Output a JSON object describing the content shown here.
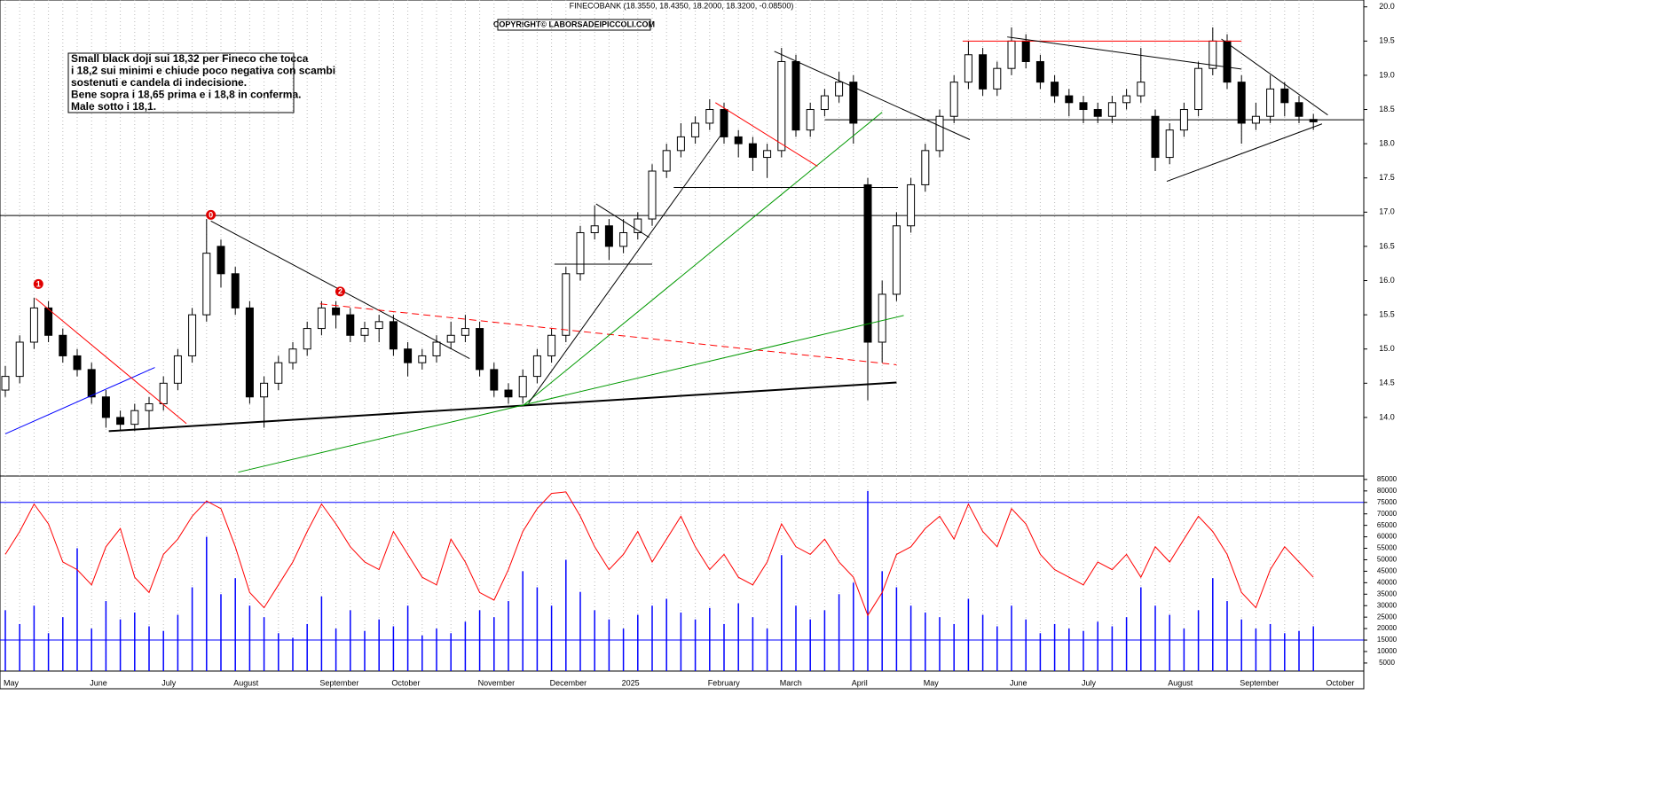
{
  "chart_data": [
    {
      "type": "candlestick",
      "header": "FINECOBANK (18.3550, 18.4350, 18.2000, 18.3200, -0.08500)",
      "copyright": "COPYRIGHT© LABORSADEIPICCOLI.COM",
      "annotation_box": {
        "lines": [
          "Small black doji sui 18,32 per Fineco che tocca",
          "i 18,2 sui minimi e chiude poco negativa con scambi",
          "sostenuti e candela di indecisione.",
          "Bene sopra i 18,65 prima e i 18,8 in conferma.",
          "Male sotto i 18,1."
        ]
      },
      "open": [
        14.4,
        14.6,
        15.1,
        15.6,
        15.2,
        14.9,
        14.7,
        14.3,
        14.0,
        13.9,
        14.1,
        14.2,
        14.5,
        14.9,
        15.5,
        16.5,
        16.1,
        15.6,
        14.3,
        14.5,
        14.8,
        15.0,
        15.3,
        15.6,
        15.5,
        15.2,
        15.3,
        15.4,
        15.0,
        14.8,
        14.9,
        15.1,
        15.2,
        15.3,
        14.7,
        14.4,
        14.3,
        14.6,
        14.9,
        15.2,
        16.1,
        16.7,
        16.8,
        16.5,
        16.7,
        16.9,
        17.6,
        17.9,
        18.1,
        18.3,
        18.5,
        18.1,
        18.0,
        17.8,
        17.9,
        19.2,
        18.2,
        18.5,
        18.7,
        18.9,
        17.4,
        15.1,
        15.8,
        16.8,
        17.4,
        17.9,
        18.4,
        18.9,
        19.3,
        18.8,
        19.1,
        19.5,
        19.2,
        18.9,
        18.7,
        18.6,
        18.5,
        18.4,
        18.6,
        18.7,
        18.4,
        17.8,
        18.2,
        18.5,
        19.1,
        19.5,
        18.9,
        18.3,
        18.4,
        18.8,
        18.6,
        18.355
      ],
      "high": [
        14.75,
        15.2,
        15.75,
        15.7,
        15.3,
        15.0,
        14.8,
        14.4,
        14.1,
        14.2,
        14.3,
        14.6,
        15.0,
        15.6,
        16.9,
        16.6,
        16.2,
        15.7,
        14.6,
        14.9,
        15.1,
        15.4,
        15.7,
        15.7,
        15.6,
        15.4,
        15.5,
        15.5,
        15.1,
        15.0,
        15.2,
        15.4,
        15.5,
        15.4,
        14.8,
        14.5,
        14.7,
        15.0,
        15.3,
        16.2,
        16.8,
        17.1,
        16.9,
        16.9,
        17.0,
        17.7,
        18.0,
        18.3,
        18.4,
        18.65,
        18.6,
        18.2,
        18.1,
        18.0,
        19.4,
        19.3,
        18.6,
        18.8,
        19.05,
        19.0,
        17.5,
        16.0,
        17.0,
        17.5,
        18.0,
        18.5,
        19.0,
        19.5,
        19.4,
        19.2,
        19.7,
        19.6,
        19.3,
        19.0,
        18.8,
        18.7,
        18.6,
        18.7,
        18.8,
        19.4,
        18.5,
        18.3,
        18.6,
        19.2,
        19.7,
        19.6,
        19.0,
        18.6,
        19.0,
        18.9,
        18.7,
        18.435
      ],
      "low": [
        14.3,
        14.5,
        15.0,
        15.1,
        14.8,
        14.6,
        14.2,
        13.85,
        13.8,
        13.8,
        13.85,
        14.1,
        14.4,
        14.8,
        15.4,
        15.9,
        15.5,
        14.2,
        13.85,
        14.4,
        14.7,
        14.9,
        15.2,
        15.3,
        15.1,
        15.1,
        15.1,
        14.9,
        14.6,
        14.7,
        14.8,
        15.0,
        15.1,
        14.6,
        14.3,
        14.2,
        14.2,
        14.5,
        14.8,
        15.1,
        16.0,
        16.6,
        16.3,
        16.4,
        16.6,
        16.8,
        17.5,
        17.8,
        18.0,
        18.2,
        18.0,
        17.8,
        17.6,
        17.5,
        17.8,
        18.1,
        18.1,
        18.4,
        18.6,
        18.0,
        14.25,
        14.8,
        15.7,
        16.7,
        17.3,
        17.8,
        18.3,
        18.8,
        18.7,
        18.7,
        19.0,
        19.1,
        18.8,
        18.6,
        18.4,
        18.3,
        18.3,
        18.3,
        18.5,
        18.6,
        17.6,
        17.7,
        18.1,
        18.4,
        19.0,
        18.8,
        18.0,
        18.2,
        18.3,
        18.4,
        18.3,
        18.2
      ],
      "close": [
        14.6,
        15.1,
        15.6,
        15.2,
        14.9,
        14.7,
        14.3,
        14.0,
        13.9,
        14.1,
        14.2,
        14.5,
        14.9,
        15.5,
        16.4,
        16.1,
        15.6,
        14.3,
        14.5,
        14.8,
        15.0,
        15.3,
        15.6,
        15.5,
        15.2,
        15.3,
        15.4,
        15.0,
        14.8,
        14.9,
        15.1,
        15.2,
        15.3,
        14.7,
        14.4,
        14.3,
        14.6,
        14.9,
        15.2,
        16.1,
        16.7,
        16.8,
        16.5,
        16.7,
        16.9,
        17.6,
        17.9,
        18.1,
        18.3,
        18.5,
        18.1,
        18.0,
        17.8,
        17.9,
        19.2,
        18.2,
        18.5,
        18.7,
        18.9,
        18.3,
        15.1,
        15.8,
        16.8,
        17.4,
        17.9,
        18.4,
        18.9,
        19.3,
        18.8,
        19.1,
        19.5,
        19.2,
        18.9,
        18.7,
        18.6,
        18.5,
        18.4,
        18.6,
        18.7,
        18.9,
        17.8,
        18.2,
        18.5,
        19.1,
        19.5,
        18.9,
        18.3,
        18.4,
        18.8,
        18.6,
        18.4,
        18.32
      ],
      "ylim": [
        13.17,
        20.1
      ],
      "yticks": [
        {
          "value": 14,
          "label": "14.0"
        },
        {
          "value": 14.5,
          "label": "14.5"
        },
        {
          "value": 15,
          "label": "15.0"
        },
        {
          "value": 15.5,
          "label": "15.5"
        },
        {
          "value": 16,
          "label": "16.0"
        },
        {
          "value": 16.5,
          "label": "16.5"
        },
        {
          "value": 17,
          "label": "17.0"
        },
        {
          "value": 17.5,
          "label": "17.5"
        },
        {
          "value": 18,
          "label": "18.0"
        },
        {
          "value": 18.5,
          "label": "18.5"
        },
        {
          "value": 19,
          "label": "19.0"
        },
        {
          "value": 19.5,
          "label": "19.5"
        },
        {
          "value": 20,
          "label": "20.0"
        }
      ],
      "months": [
        {
          "index": 0,
          "label": "May"
        },
        {
          "index": 6,
          "label": "June"
        },
        {
          "index": 11,
          "label": "July"
        },
        {
          "index": 16,
          "label": "August"
        },
        {
          "index": 22,
          "label": "September"
        },
        {
          "index": 27,
          "label": "October"
        },
        {
          "index": 33,
          "label": "November"
        },
        {
          "index": 38,
          "label": "December"
        },
        {
          "index": 43,
          "label": "2025"
        },
        {
          "index": 49,
          "label": "February"
        },
        {
          "index": 54,
          "label": "March"
        },
        {
          "index": 59,
          "label": "April"
        },
        {
          "index": 64,
          "label": "May"
        },
        {
          "index": 70,
          "label": "June"
        },
        {
          "index": 75,
          "label": "July"
        },
        {
          "index": 81,
          "label": "August"
        },
        {
          "index": 86,
          "label": "September"
        },
        {
          "index": 92,
          "label": "October"
        }
      ],
      "levels": [
        {
          "value": 16.95,
          "from": -1,
          "color": "#000000"
        },
        {
          "value": 18.35,
          "from": 57,
          "color": "#000000"
        }
      ],
      "trendlines": [
        {
          "start": [
            0,
            13.76
          ],
          "end": [
            10.4,
            14.73
          ],
          "color": "#0000ff",
          "width": 1,
          "dashed": false
        },
        {
          "start": [
            2.1,
            15.74
          ],
          "end": [
            12.6,
            13.91
          ],
          "color": "#ff0000",
          "width": 1,
          "dashed": false
        },
        {
          "start": [
            7.2,
            13.8
          ],
          "end": [
            62,
            14.51
          ],
          "color": "#000000",
          "width": 2,
          "dashed": false
        },
        {
          "start": [
            14.3,
            16.87
          ],
          "end": [
            32.3,
            14.86
          ],
          "color": "#000000",
          "width": 1,
          "dashed": false
        },
        {
          "start": [
            21.9,
            15.66
          ],
          "end": [
            62,
            14.77
          ],
          "color": "#ff0000",
          "width": 1,
          "dashed": true
        },
        {
          "start": [
            16.2,
            13.2
          ],
          "end": [
            62.5,
            15.49
          ],
          "color": "#009900",
          "width": 1,
          "dashed": false
        },
        {
          "start": [
            36,
            14.17
          ],
          "end": [
            61,
            18.46
          ],
          "color": "#009900",
          "width": 1,
          "dashed": false
        },
        {
          "start": [
            36.4,
            14.21
          ],
          "end": [
            49.9,
            18.16
          ],
          "color": "#000000",
          "width": 1,
          "dashed": false
        },
        {
          "start": [
            38.2,
            16.24
          ],
          "end": [
            45,
            16.24
          ],
          "color": "#000000",
          "width": 1,
          "dashed": false
        },
        {
          "start": [
            41.1,
            17.12
          ],
          "end": [
            44.8,
            16.63
          ],
          "color": "#000000",
          "width": 1,
          "dashed": false
        },
        {
          "start": [
            46.5,
            17.36
          ],
          "end": [
            62.1,
            17.36
          ],
          "color": "#000000",
          "width": 1,
          "dashed": false
        },
        {
          "start": [
            49.4,
            18.6
          ],
          "end": [
            56.5,
            17.67
          ],
          "color": "#ff0000",
          "width": 1,
          "dashed": false
        },
        {
          "start": [
            53.5,
            19.35
          ],
          "end": [
            67.1,
            18.06
          ],
          "color": "#000000",
          "width": 1,
          "dashed": false
        },
        {
          "start": [
            66.6,
            19.5
          ],
          "end": [
            86,
            19.5
          ],
          "color": "#ff0000",
          "width": 1,
          "dashed": false
        },
        {
          "start": [
            69.7,
            19.56
          ],
          "end": [
            86,
            19.09
          ],
          "color": "#000000",
          "width": 1,
          "dashed": false
        },
        {
          "start": [
            84.6,
            19.53
          ],
          "end": [
            92,
            18.42
          ],
          "color": "#000000",
          "width": 1,
          "dashed": false
        },
        {
          "start": [
            80.8,
            17.45
          ],
          "end": [
            91.6,
            18.29
          ],
          "color": "#000000",
          "width": 1,
          "dashed": false
        }
      ],
      "markers": [
        {
          "label": "1",
          "index": 2.3,
          "price": 15.95
        },
        {
          "label": "0",
          "index": 14.3,
          "price": 16.96
        },
        {
          "label": "2",
          "index": 23.3,
          "price": 15.84
        }
      ]
    },
    {
      "type": "bar",
      "series": [
        {
          "name": "Volume",
          "color": "#0000ff",
          "values": [
            28000,
            22000,
            30000,
            18000,
            25000,
            55000,
            20000,
            32000,
            24000,
            27000,
            21000,
            19000,
            26000,
            38000,
            60000,
            35000,
            42000,
            30000,
            25000,
            18000,
            16000,
            22000,
            34000,
            20000,
            28000,
            19000,
            24000,
            21000,
            30000,
            17000,
            20000,
            18000,
            23000,
            28000,
            25000,
            32000,
            45000,
            38000,
            30000,
            50000,
            36000,
            28000,
            24000,
            20000,
            26000,
            30000,
            33000,
            27000,
            24000,
            29000,
            22000,
            31000,
            25000,
            20000,
            52000,
            30000,
            24000,
            28000,
            35000,
            40000,
            80000,
            45000,
            38000,
            30000,
            27000,
            25000,
            22000,
            33000,
            26000,
            21000,
            30000,
            24000,
            18000,
            22000,
            20000,
            19000,
            23000,
            21000,
            25000,
            38000,
            30000,
            26000,
            20000,
            28000,
            42000,
            32000,
            24000,
            20000,
            22000,
            18000,
            19000,
            21000
          ]
        }
      ],
      "oscillator": {
        "color": "#ff0000",
        "ylim": [
          0,
          100
        ],
        "values": [
          55,
          70,
          88,
          75,
          50,
          45,
          35,
          60,
          72,
          40,
          30,
          55,
          65,
          80,
          90,
          85,
          60,
          30,
          20,
          35,
          50,
          70,
          88,
          75,
          60,
          50,
          45,
          70,
          55,
          40,
          35,
          65,
          50,
          30,
          25,
          45,
          70,
          85,
          95,
          96,
          80,
          60,
          45,
          55,
          70,
          50,
          65,
          80,
          60,
          45,
          55,
          40,
          35,
          50,
          75,
          60,
          55,
          65,
          50,
          40,
          15,
          30,
          55,
          60,
          72,
          80,
          65,
          88,
          70,
          60,
          85,
          75,
          55,
          45,
          40,
          35,
          50,
          45,
          55,
          40,
          60,
          50,
          65,
          80,
          70,
          55,
          30,
          20,
          45,
          60,
          50,
          40
        ]
      },
      "levels": [
        75000,
        15000
      ],
      "ylim": [
        1500,
        86500
      ],
      "yticks": [
        5000,
        10000,
        15000,
        20000,
        25000,
        30000,
        35000,
        40000,
        45000,
        50000,
        55000,
        60000,
        65000,
        70000,
        75000,
        80000,
        85000
      ]
    }
  ]
}
